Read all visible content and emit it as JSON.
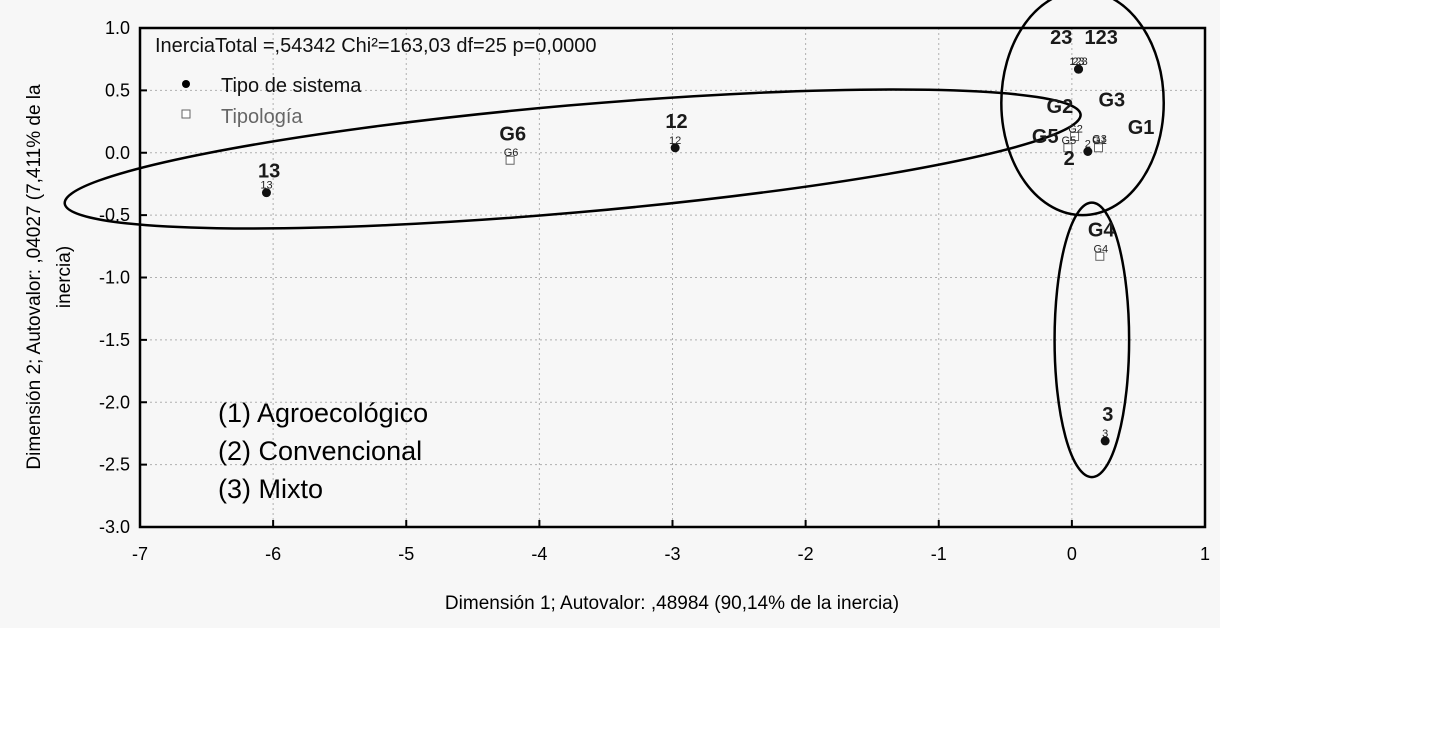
{
  "chart_data": {
    "type": "scatter",
    "title": "InerciaTotal =,54342 Chi²=163,03 df=25 p=0,0000",
    "xlabel": "Dimensión 1; Autovalor: ,48984 (90,14% de la inercia)",
    "ylabel_lines": [
      "Dimensión 2; Autovalor: ,04027 (7,411% de la",
      "inercia)"
    ],
    "xlim": [
      -7,
      1
    ],
    "ylim": [
      -3,
      1
    ],
    "xticks": [
      "-7",
      "-6",
      "-5",
      "-4",
      "-3",
      "-2",
      "-1",
      "0",
      "1"
    ],
    "yticks": [
      "1.0",
      "0.5",
      "0.0",
      "-0.5",
      "-1.0",
      "-1.5",
      "-2.0",
      "-2.5",
      "-3.0"
    ],
    "grid": true,
    "legend_position": "top-left",
    "series": [
      {
        "name": "Tipo de sistema",
        "marker": "filled-circle",
        "points": [
          {
            "label": "13",
            "x": -6.05,
            "y": -0.32
          },
          {
            "label": "12",
            "x": -2.98,
            "y": 0.04
          },
          {
            "label": "23",
            "x": 0.05,
            "y": 0.67
          },
          {
            "label": "123",
            "x": 0.05,
            "y": 0.67
          },
          {
            "label": "2",
            "x": 0.12,
            "y": 0.01
          },
          {
            "label": "3",
            "x": 0.25,
            "y": -2.31
          }
        ]
      },
      {
        "name": "Tipología",
        "marker": "open-square",
        "points": [
          {
            "label": "G6",
            "x": -4.22,
            "y": -0.06
          },
          {
            "label": "G2",
            "x": 0.02,
            "y": 0.13
          },
          {
            "label": "G3",
            "x": 0.2,
            "y": 0.05
          },
          {
            "label": "G5",
            "x": -0.03,
            "y": 0.04
          },
          {
            "label": "G1",
            "x": 0.2,
            "y": 0.04
          },
          {
            "label": "G4",
            "x": 0.21,
            "y": -0.83
          }
        ]
      }
    ],
    "big_labels": [
      {
        "text": "13",
        "x": -6.03,
        "y": -0.2
      },
      {
        "text": "12",
        "x": -2.97,
        "y": 0.2
      },
      {
        "text": "G6",
        "x": -4.2,
        "y": 0.1
      },
      {
        "text": "23",
        "x": -0.08,
        "y": 0.87
      },
      {
        "text": "123",
        "x": 0.22,
        "y": 0.87
      },
      {
        "text": "G2",
        "x": -0.09,
        "y": 0.32
      },
      {
        "text": "G3",
        "x": 0.3,
        "y": 0.37
      },
      {
        "text": "G5",
        "x": -0.2,
        "y": 0.08
      },
      {
        "text": "G1",
        "x": 0.52,
        "y": 0.15
      },
      {
        "text": "2",
        "x": -0.02,
        "y": -0.1
      },
      {
        "text": "G4",
        "x": 0.22,
        "y": -0.67
      },
      {
        "text": "3",
        "x": 0.27,
        "y": -2.15
      }
    ],
    "ellipses": [
      {
        "cx": -3.75,
        "cy": -0.05,
        "rx": 3.83,
        "ry": 0.43,
        "rotate_deg": -5
      },
      {
        "cx": 0.08,
        "cy": 0.4,
        "rx": 0.61,
        "ry": 0.9,
        "rotate_deg": 0
      },
      {
        "cx": 0.15,
        "cy": -1.5,
        "rx": 0.28,
        "ry": 1.1,
        "rotate_deg": 0
      }
    ],
    "annotations": [
      "(1) Agroecológico",
      "(2) Convencional",
      "(3) Mixto"
    ]
  }
}
